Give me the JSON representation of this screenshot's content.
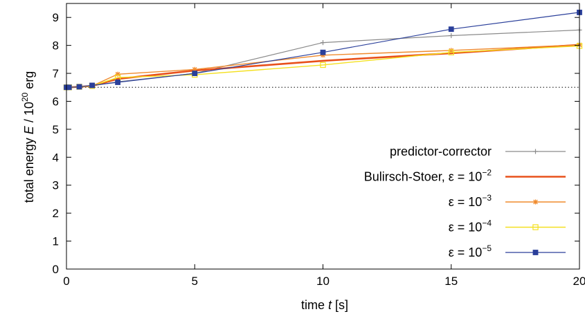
{
  "chart_data": {
    "type": "line",
    "xlabel": {
      "pre": "time ",
      "var": "t",
      "post": " [s]"
    },
    "ylabel": {
      "pre": "total energy ",
      "var": "E",
      "mid": " / 10",
      "exp": "20",
      "post": " erg"
    },
    "xlim": [
      0,
      20
    ],
    "ylim": [
      0,
      9.5
    ],
    "xticks": [
      0,
      5,
      10,
      15,
      20
    ],
    "yticks": [
      0,
      1,
      2,
      3,
      4,
      5,
      6,
      7,
      8,
      9
    ],
    "grid": false,
    "legend_position": "bottom-right",
    "reference_line": {
      "y": 6.5,
      "style": "dotted",
      "color": "#333333"
    },
    "series": [
      {
        "name": "predictor-corrector",
        "legend_base": "predictor-corrector",
        "legend_exp": "",
        "color": "#8a8a8a",
        "width": 1.2,
        "marker": "plus",
        "x": [
          0,
          0.1,
          0.5,
          1,
          2,
          5,
          10,
          15,
          20
        ],
        "y": [
          6.5,
          6.5,
          6.52,
          6.55,
          6.7,
          7.0,
          8.1,
          8.35,
          8.55
        ]
      },
      {
        "name": "Bulirsch-Stoer, ε = 10−2",
        "legend_base": "Bulirsch-Stoer, ε = 10",
        "legend_exp": "−2",
        "color": "#e8501a",
        "width": 2.6,
        "marker": "none",
        "x": [
          0,
          0.1,
          0.5,
          1,
          2,
          5,
          10,
          15,
          20
        ],
        "y": [
          6.5,
          6.5,
          6.52,
          6.55,
          6.8,
          7.1,
          7.45,
          7.72,
          8.02
        ]
      },
      {
        "name": "ε = 10−3",
        "legend_base": "ε = 10",
        "legend_exp": "−3",
        "color": "#f08a2c",
        "width": 1.4,
        "marker": "star",
        "x": [
          0,
          0.1,
          0.5,
          1,
          2,
          5,
          10,
          15,
          20
        ],
        "y": [
          6.5,
          6.5,
          6.52,
          6.55,
          6.97,
          7.14,
          7.65,
          7.82,
          8.02
        ]
      },
      {
        "name": "ε = 10−4",
        "legend_base": "ε = 10",
        "legend_exp": "−4",
        "color": "#f4e020",
        "width": 1.4,
        "marker": "square-open",
        "x": [
          0,
          0.1,
          0.5,
          1,
          2,
          5,
          10,
          15,
          20
        ],
        "y": [
          6.5,
          6.5,
          6.52,
          6.55,
          6.85,
          6.95,
          7.3,
          7.75,
          7.98
        ]
      },
      {
        "name": "ε = 10−5",
        "legend_base": "ε = 10",
        "legend_exp": "−5",
        "color": "#2a3f9a",
        "width": 1.2,
        "marker": "square-filled",
        "x": [
          0,
          0.1,
          0.5,
          1,
          2,
          5,
          10,
          15,
          20
        ],
        "y": [
          6.5,
          6.5,
          6.52,
          6.57,
          6.68,
          7.0,
          7.75,
          8.58,
          9.18
        ]
      }
    ]
  }
}
